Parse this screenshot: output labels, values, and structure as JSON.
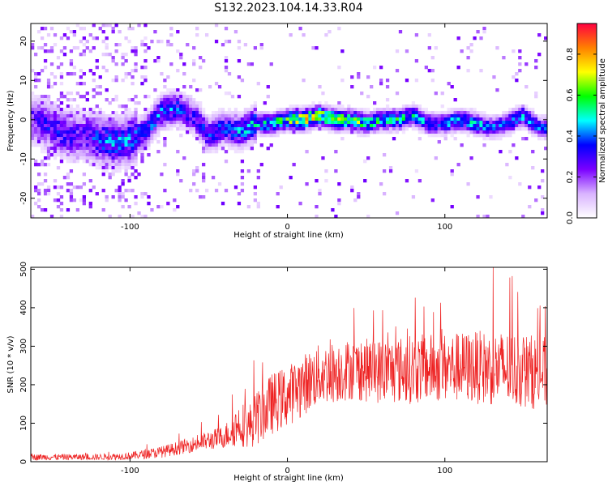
{
  "figure": {
    "title": "S132.2023.104.14.33.R04"
  },
  "chart_data": [
    {
      "type": "heatmap",
      "xlabel": "Height of straight line (km)",
      "ylabel": "Frequency (Hz)",
      "xlim": [
        -163,
        165
      ],
      "ylim": [
        -25,
        24.5
      ],
      "xticks": [
        -100,
        0,
        100
      ],
      "yticks": [
        -20,
        -10,
        0,
        10,
        20
      ],
      "grid": false,
      "colorbar": {
        "label": "Normalized spectral amplitude",
        "range": [
          0,
          0.95
        ],
        "ticks": [
          0.0,
          0.2,
          0.4,
          0.6,
          0.8
        ],
        "tick_labels": [
          "0.0",
          "0.2",
          "0.4",
          "0.6",
          "0.8"
        ],
        "colors": [
          "#ffffff",
          "#d9b3ff",
          "#7a00ff",
          "#0000ff",
          "#00ffff",
          "#00ff00",
          "#ffff00",
          "#ff8000",
          "#ff0040"
        ]
      },
      "ridge": {
        "note_free": true,
        "x": [
          -160,
          -150,
          -140,
          -130,
          -120,
          -110,
          -100,
          -90,
          -80,
          -70,
          -60,
          -50,
          -40,
          -30,
          -20,
          -10,
          0,
          10,
          20,
          30,
          40,
          50,
          60,
          70,
          80,
          90,
          100,
          110,
          120,
          130,
          140,
          150,
          160
        ],
        "f": [
          0,
          -2,
          -4,
          -4,
          -5,
          -6,
          -5,
          -3,
          2,
          3,
          1,
          -4,
          -2,
          -3,
          -1,
          -1,
          0,
          0,
          1,
          0,
          0,
          -1,
          0,
          0,
          1,
          -1,
          -1,
          0,
          -1,
          -2,
          -1,
          1,
          -2
        ],
        "amp": [
          0.3,
          0.35,
          0.35,
          0.3,
          0.4,
          0.45,
          0.45,
          0.4,
          0.45,
          0.4,
          0.35,
          0.4,
          0.4,
          0.45,
          0.5,
          0.55,
          0.65,
          0.8,
          0.75,
          0.7,
          0.65,
          0.6,
          0.55,
          0.55,
          0.5,
          0.45,
          0.45,
          0.5,
          0.5,
          0.45,
          0.45,
          0.5,
          0.4
        ]
      }
    },
    {
      "type": "line",
      "xlabel": "Height of straight line (km)",
      "ylabel": "SNR (10 * v/v)",
      "xlim": [
        -163,
        165
      ],
      "ylim": [
        0,
        505
      ],
      "xticks": [
        -100,
        0,
        100
      ],
      "yticks": [
        0,
        100,
        200,
        300,
        400,
        500
      ],
      "grid": false,
      "series": [
        {
          "color": "#ee2222",
          "envelope_x": [
            -163,
            -140,
            -120,
            -100,
            -80,
            -60,
            -40,
            -30,
            -25,
            -20,
            -10,
            0,
            10,
            20,
            40,
            60,
            80,
            100,
            120,
            140,
            165
          ],
          "envelope_mean": [
            12,
            12,
            12,
            15,
            25,
            45,
            65,
            100,
            90,
            110,
            150,
            170,
            200,
            225,
            240,
            235,
            240,
            245,
            245,
            240,
            230
          ],
          "envelope_amp": [
            8,
            8,
            8,
            10,
            15,
            20,
            30,
            60,
            55,
            70,
            80,
            80,
            80,
            80,
            80,
            85,
            90,
            90,
            95,
            100,
            95
          ]
        }
      ]
    }
  ]
}
